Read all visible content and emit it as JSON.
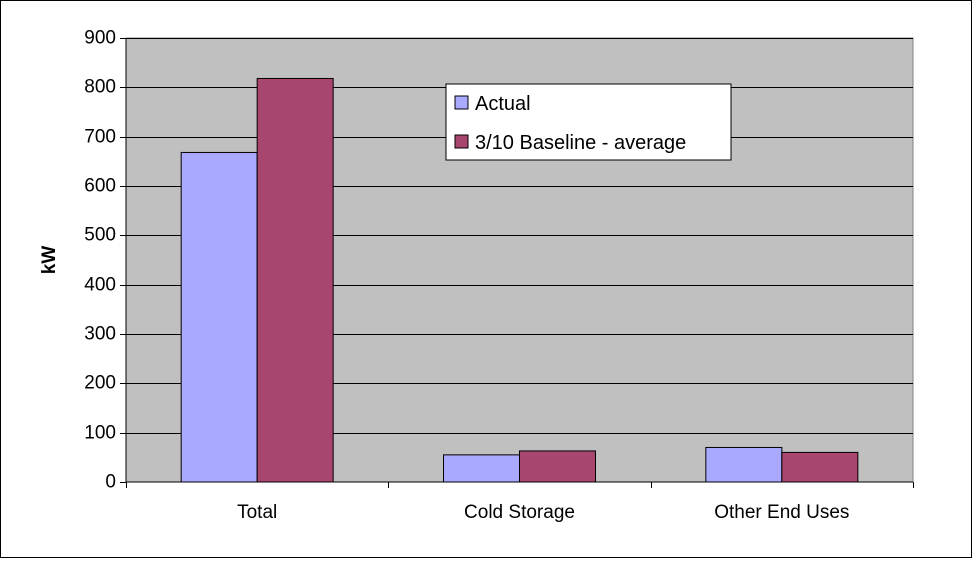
{
  "chart_data": {
    "type": "bar",
    "title": "",
    "xlabel": "",
    "ylabel": "kW",
    "ylim": [
      0,
      900
    ],
    "yticks": [
      0,
      100,
      200,
      300,
      400,
      500,
      600,
      700,
      800,
      900
    ],
    "categories": [
      "Total",
      "Cold Storage",
      "Other End Uses"
    ],
    "series": [
      {
        "name": "Actual",
        "values": [
          668,
          55,
          70
        ]
      },
      {
        "name": "3/10 Baseline - average",
        "values": [
          818,
          63,
          60
        ]
      }
    ],
    "grid": true,
    "legend_position": "top-center",
    "colors": {
      "series": [
        "#a9a9ff",
        "#a8466f"
      ],
      "plot_background": "#c0c0c0",
      "gridline": "#000000",
      "legend_background": "#ffffff"
    }
  }
}
